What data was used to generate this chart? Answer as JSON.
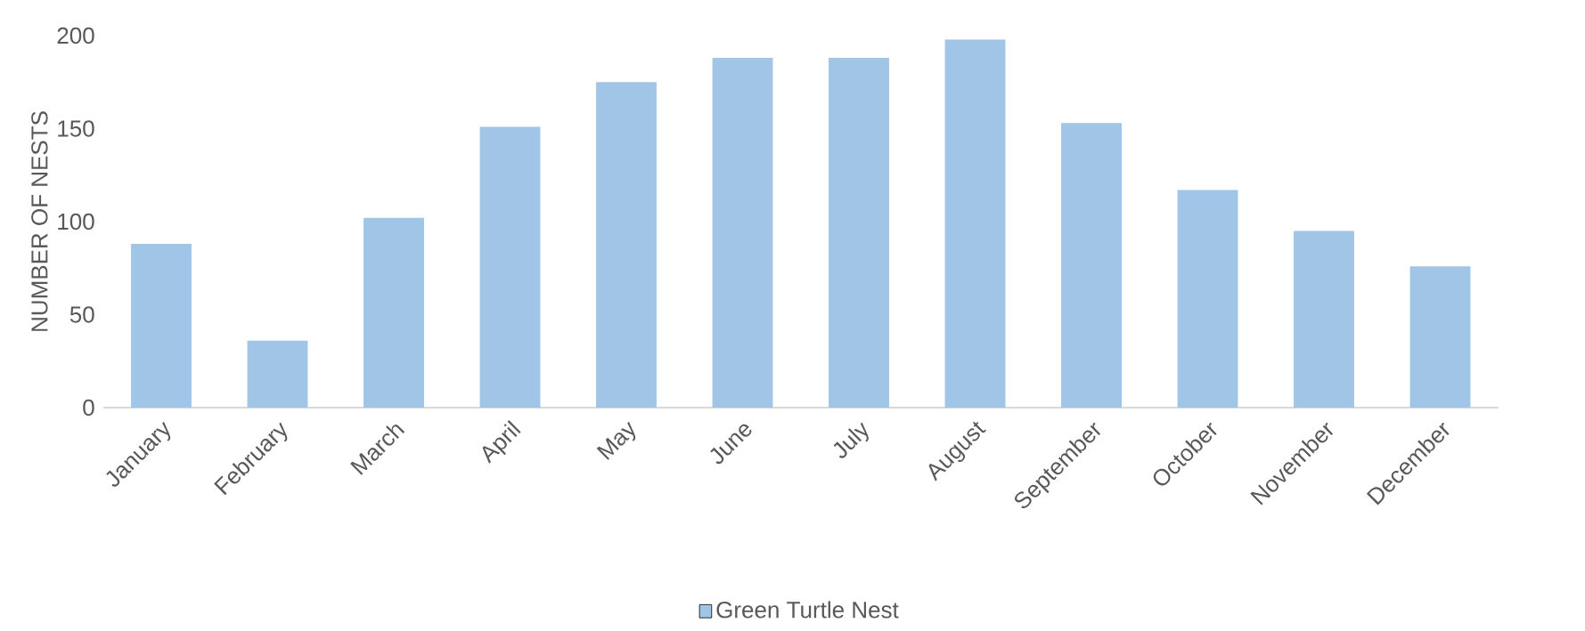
{
  "chart_data": {
    "type": "bar",
    "ylabel": "NUMBER OF NESTS",
    "categories": [
      "January",
      "February",
      "March",
      "April",
      "May",
      "June",
      "July",
      "August",
      "September",
      "October",
      "November",
      "December"
    ],
    "series": [
      {
        "name": "Green Turtle Nest",
        "color": "#a0c5e7",
        "values": [
          88,
          36,
          102,
          151,
          175,
          188,
          188,
          198,
          153,
          117,
          95,
          76
        ]
      }
    ],
    "ylim": [
      0,
      200
    ],
    "yticks": [
      0,
      50,
      100,
      150,
      200
    ],
    "legend": "bottom"
  }
}
